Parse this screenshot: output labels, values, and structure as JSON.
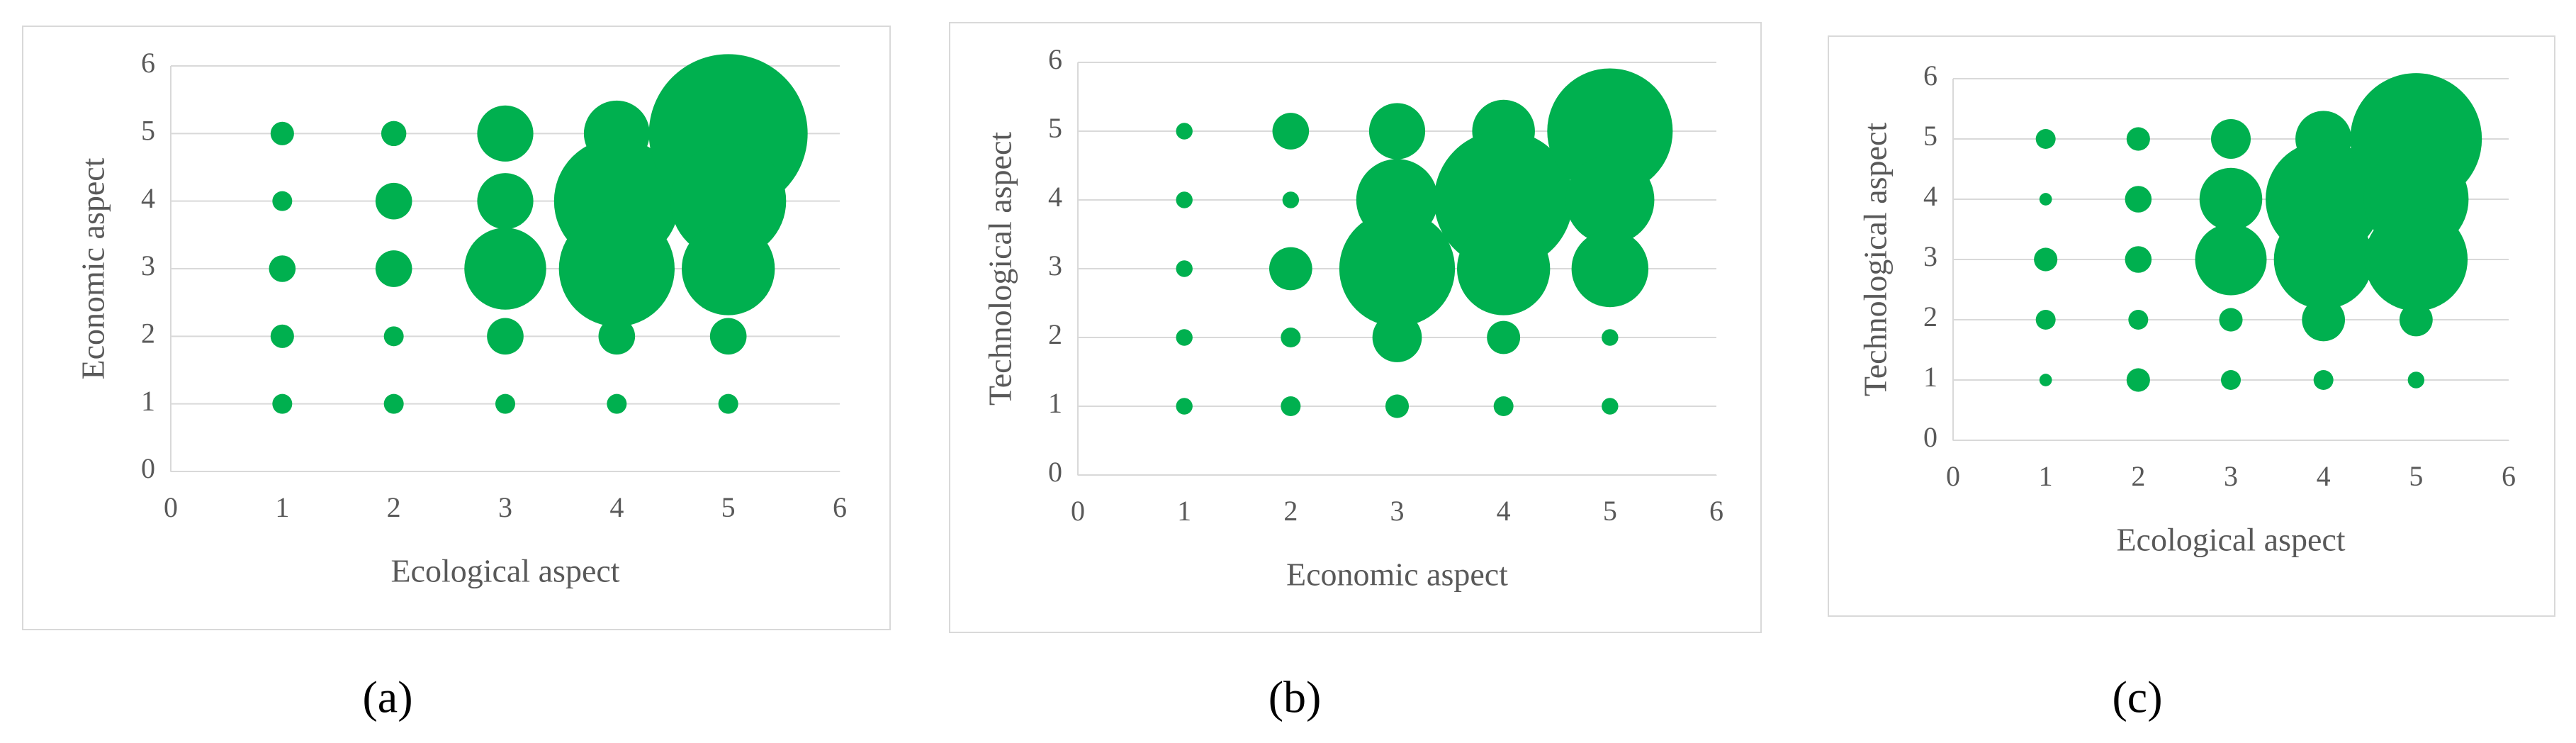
{
  "chart_data": [
    {
      "type": "bubble",
      "label": "(a)",
      "xlabel": "Ecological aspect",
      "ylabel": "Economic aspect",
      "xlim": [
        0,
        6
      ],
      "ylim": [
        0,
        6
      ],
      "xticks": [
        0,
        1,
        2,
        3,
        4,
        5,
        6
      ],
      "yticks": [
        0,
        1,
        2,
        3,
        4,
        5,
        6
      ],
      "grid": true,
      "series": [
        {
          "color": "#00b04f",
          "x": [
            1,
            1,
            1,
            1,
            1,
            2,
            2,
            2,
            2,
            2,
            3,
            3,
            3,
            3,
            3,
            4,
            4,
            4,
            4,
            4,
            5,
            5,
            5,
            5,
            5
          ],
          "y": [
            5,
            4,
            3,
            2,
            1,
            5,
            4,
            3,
            2,
            1,
            5,
            4,
            3,
            2,
            1,
            5,
            4,
            3,
            2,
            1,
            5,
            4,
            3,
            2,
            1
          ],
          "size": [
            1.4,
            1,
            1.8,
            1.4,
            1,
            1.6,
            3.4,
            3.4,
            1,
            1,
            8,
            8,
            17,
            3.4,
            1,
            11,
            40,
            34,
            3.4,
            1,
            64,
            34,
            22,
            3.4,
            1
          ]
        }
      ]
    },
    {
      "type": "bubble",
      "label": "(b)",
      "xlabel": "Economic aspect",
      "ylabel": "Technological aspect",
      "xlim": [
        0,
        6
      ],
      "ylim": [
        0,
        6
      ],
      "xticks": [
        0,
        1,
        2,
        3,
        4,
        5,
        6
      ],
      "yticks": [
        0,
        1,
        2,
        3,
        4,
        5,
        6
      ],
      "grid": true,
      "series": [
        {
          "color": "#00b04f",
          "x": [
            1,
            1,
            1,
            1,
            1,
            2,
            2,
            2,
            2,
            2,
            3,
            3,
            3,
            3,
            3,
            4,
            4,
            4,
            4,
            4,
            5,
            5,
            5,
            5,
            5
          ],
          "y": [
            5,
            4,
            3,
            2,
            1,
            5,
            4,
            3,
            2,
            1,
            5,
            4,
            3,
            2,
            1,
            5,
            4,
            3,
            2,
            1,
            5,
            4,
            3,
            2,
            1
          ],
          "size": [
            0.7,
            0.7,
            0.7,
            0.7,
            0.7,
            3.4,
            0.7,
            4.7,
            1,
            1,
            8,
            17,
            34,
            6.2,
            1.4,
            10,
            49,
            22,
            2.8,
            1,
            40,
            20,
            15,
            0.7,
            0.7
          ]
        }
      ]
    },
    {
      "type": "bubble",
      "label": "(c)",
      "xlabel": "Ecological aspect",
      "ylabel": "Technological aspect",
      "xlim": [
        0,
        6
      ],
      "ylim": [
        0,
        6
      ],
      "xticks": [
        0,
        1,
        2,
        3,
        4,
        5,
        6
      ],
      "yticks": [
        0,
        1,
        2,
        3,
        4,
        5,
        6
      ],
      "grid": true,
      "series": [
        {
          "color": "#00b04f",
          "x": [
            1,
            1,
            1,
            1,
            1,
            2,
            2,
            2,
            2,
            2,
            3,
            3,
            3,
            3,
            3,
            4,
            4,
            4,
            4,
            4,
            5,
            5,
            5,
            5,
            5
          ],
          "y": [
            5,
            4,
            3,
            2,
            1,
            5,
            4,
            3,
            2,
            1,
            5,
            4,
            3,
            2,
            1,
            5,
            4,
            3,
            2,
            1,
            5,
            4,
            3,
            2,
            1
          ],
          "size": [
            1,
            0.4,
            1.4,
            1,
            0.4,
            1.4,
            1.8,
            1.8,
            1,
            1.4,
            4,
            10,
            13,
            1.4,
            1,
            8,
            34,
            25,
            4.7,
            1,
            44,
            28,
            27,
            2.8,
            0.7
          ]
        }
      ]
    }
  ]
}
